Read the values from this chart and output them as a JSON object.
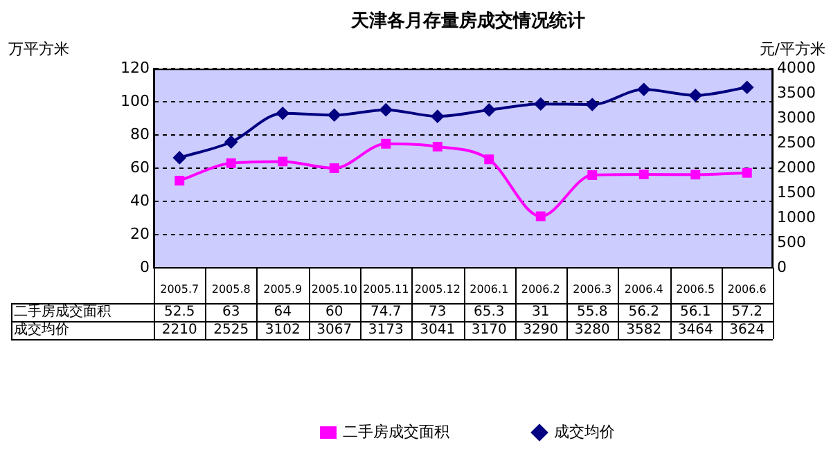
{
  "chart_data": {
    "type": "line",
    "title": "天津各月存量房成交情况统计",
    "ylabel": "万平方米",
    "y2label": "元/平方米",
    "categories": [
      "2005.7",
      "2005.8",
      "2005.9",
      "2005.10",
      "2005.11",
      "2005.12",
      "2006.1",
      "2006.2",
      "2006.3",
      "2006.4",
      "2006.5",
      "2006.6"
    ],
    "series": [
      {
        "name": "二手房成交面积",
        "color": "#ff00ff",
        "marker": "square",
        "values": [
          52.5,
          63,
          64,
          60,
          74.7,
          73,
          65.3,
          31,
          55.8,
          56.2,
          56.1,
          57.2
        ]
      },
      {
        "name": "成交均价",
        "color": "#000080",
        "marker": "diamond",
        "axis": "y2",
        "values": [
          2210,
          2525,
          3102,
          3067,
          3173,
          3041,
          3170,
          3290,
          3280,
          3582,
          3464,
          3624
        ]
      }
    ],
    "ylim": [
      0,
      120
    ],
    "yticks": [
      0,
      20,
      40,
      60,
      80,
      100,
      120
    ],
    "y2lim": [
      0,
      4000
    ],
    "y2ticks": [
      0,
      500,
      1000,
      1500,
      2000,
      2500,
      3000,
      3500,
      4000
    ],
    "grid": "y",
    "legend": "bottom",
    "data_labels": true
  }
}
